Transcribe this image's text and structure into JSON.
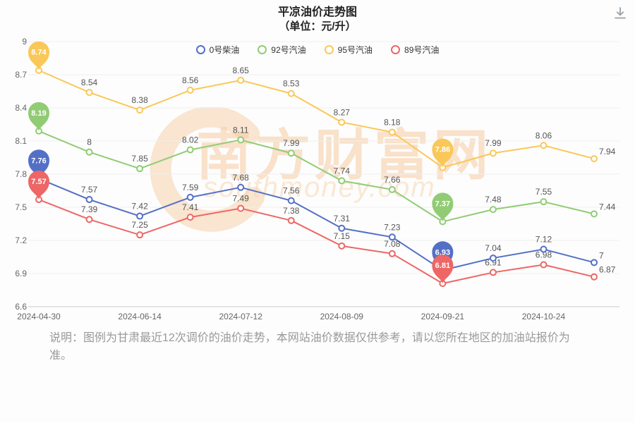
{
  "header": {
    "title": "平凉油价走势图",
    "subtitle": "（单位：元/升）"
  },
  "legend": [
    {
      "label": "0号柴油",
      "color": "#5470c6"
    },
    {
      "label": "92号汽油",
      "color": "#91cc75"
    },
    {
      "label": "95号汽油",
      "color": "#fac858"
    },
    {
      "label": "89号汽油",
      "color": "#ee6666"
    }
  ],
  "chart_data": {
    "type": "line",
    "title": "平凉油价走势图",
    "subtitle": "（单位：元/升）",
    "num_points": 12,
    "x_tick_labels": [
      "2024-04-30",
      "2024-06-14",
      "2024-07-12",
      "2024-08-09",
      "2024-09-21",
      "2024-10-24"
    ],
    "x_tick_indices": [
      0,
      2,
      4,
      6,
      8,
      10
    ],
    "ylim": [
      6.6,
      9
    ],
    "y_ticks": [
      6.6,
      6.9,
      7.2,
      7.5,
      7.8,
      8.1,
      8.4,
      8.7,
      9
    ],
    "grid": true,
    "legend_position": "top",
    "series": [
      {
        "name": "0号柴油",
        "color": "#5470c6",
        "values": [
          7.76,
          7.57,
          7.42,
          7.59,
          7.68,
          7.56,
          7.31,
          7.23,
          6.93,
          7.04,
          7.12,
          7.0
        ],
        "pin_indices": [
          0,
          8
        ]
      },
      {
        "name": "92号汽油",
        "color": "#91cc75",
        "values": [
          8.19,
          8.0,
          7.85,
          8.02,
          8.11,
          7.99,
          7.74,
          7.66,
          7.37,
          7.48,
          7.55,
          7.44
        ],
        "pin_indices": [
          0,
          8
        ]
      },
      {
        "name": "95号汽油",
        "color": "#fac858",
        "values": [
          8.74,
          8.54,
          8.38,
          8.56,
          8.65,
          8.53,
          8.27,
          8.18,
          7.86,
          7.99,
          8.06,
          7.94
        ],
        "pin_indices": [
          0,
          8
        ]
      },
      {
        "name": "89号汽油",
        "color": "#ee6666",
        "values": [
          7.57,
          7.39,
          7.25,
          7.41,
          7.49,
          7.38,
          7.15,
          7.08,
          6.81,
          6.91,
          6.98,
          6.87
        ],
        "pin_indices": [
          0,
          8
        ]
      }
    ]
  },
  "watermark": {
    "text": "南方财富网",
    "subtext": "southmoney.com",
    "color": "#f6cba0"
  },
  "note": "说明：图例为甘肃最近12次调价的油价走势，本网站油价数据仅供参考，请以您所在地区的加油站报价为准。"
}
